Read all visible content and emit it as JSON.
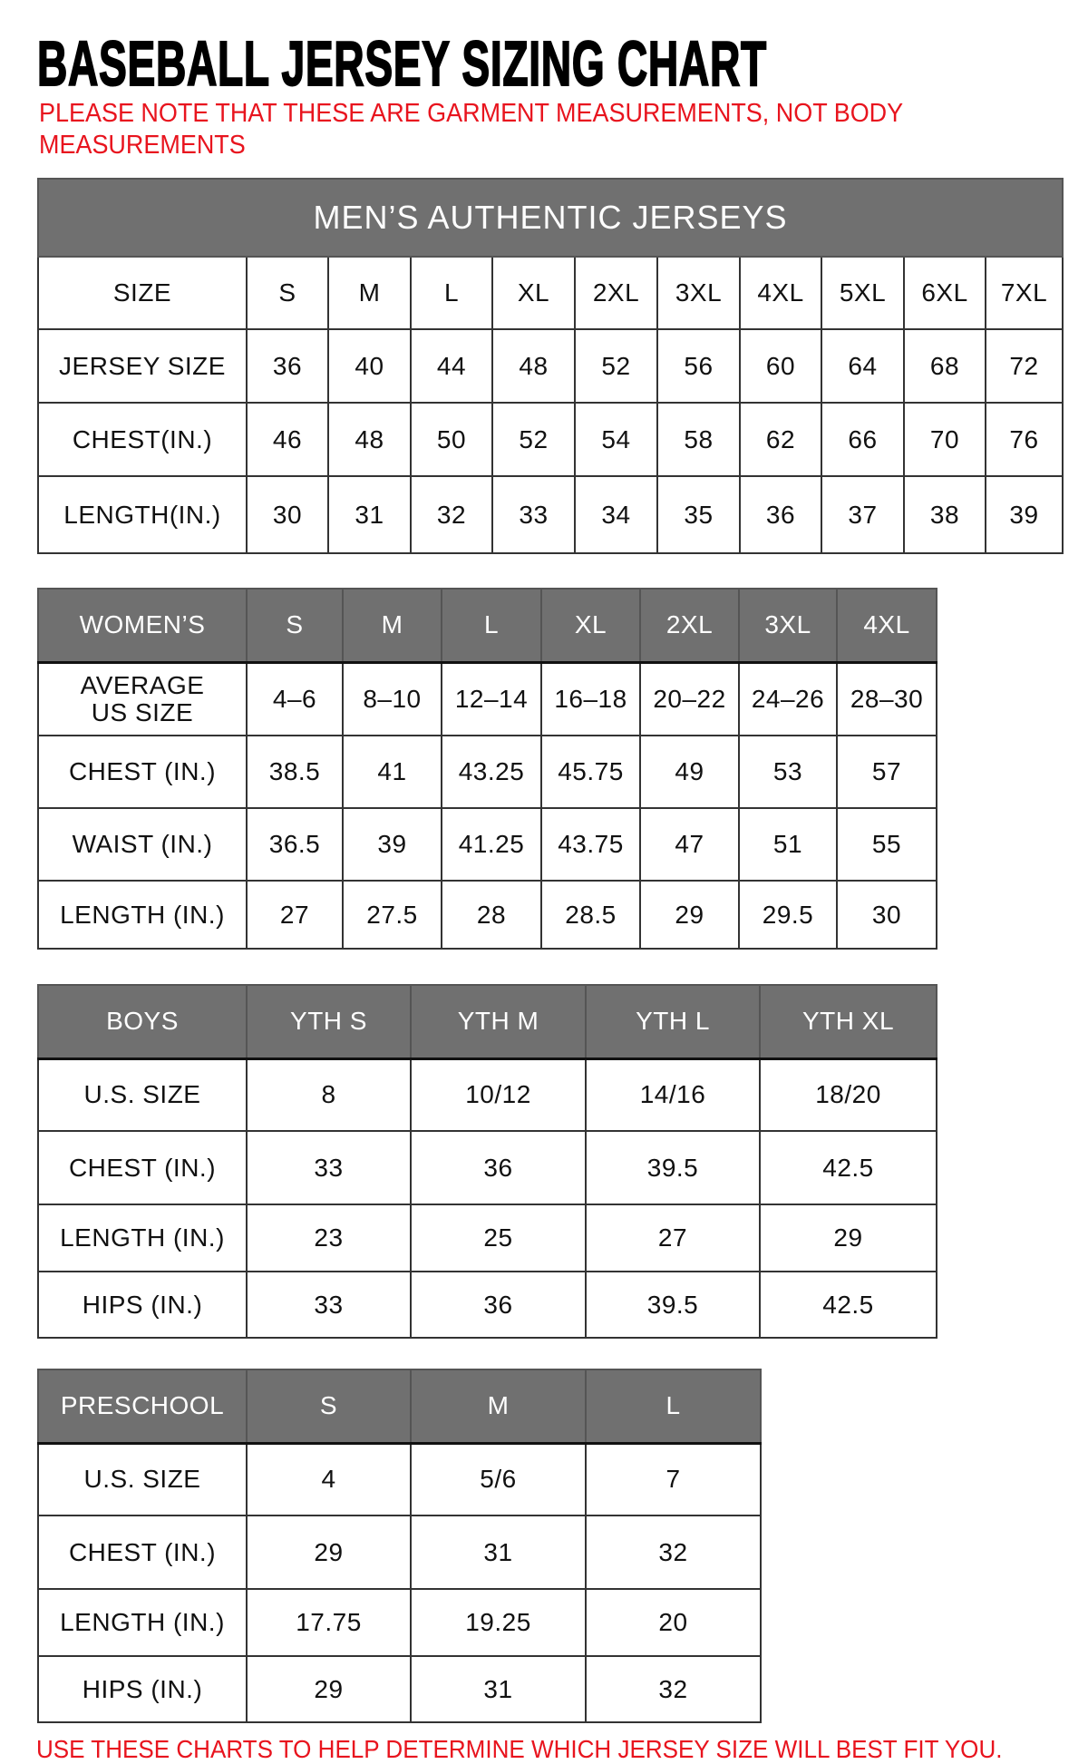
{
  "title": "BASEBALL JERSEY SIZING CHART",
  "note": "PLEASE NOTE THAT THESE ARE GARMENT MEASUREMENTS, NOT BODY MEASUREMENTS",
  "footer": "USE THESE CHARTS TO HELP DETERMINE WHICH JERSEY SIZE WILL BEST FIT YOU.",
  "colors": {
    "header_bg": "#707070",
    "header_text": "#ffffff",
    "note_text": "#e8141e",
    "border": "#333333"
  },
  "tables": [
    {
      "id": "men",
      "banner": "MEN’S AUTHENTIC JERSEYS",
      "header_is_gray": false,
      "header": [
        "SIZE",
        "S",
        "M",
        "L",
        "XL",
        "2XL",
        "3XL",
        "4XL",
        "5XL",
        "6XL",
        "7XL"
      ],
      "rows": [
        [
          "JERSEY SIZE",
          "36",
          "40",
          "44",
          "48",
          "52",
          "56",
          "60",
          "64",
          "68",
          "72"
        ],
        [
          "CHEST(IN.)",
          "46",
          "48",
          "50",
          "52",
          "54",
          "58",
          "62",
          "66",
          "70",
          "76"
        ],
        [
          "LENGTH(IN.)",
          "30",
          "31",
          "32",
          "33",
          "34",
          "35",
          "36",
          "37",
          "38",
          "39"
        ]
      ]
    },
    {
      "id": "women",
      "header_is_gray": true,
      "header": [
        "WOMEN’S",
        "S",
        "M",
        "L",
        "XL",
        "2XL",
        "3XL",
        "4XL"
      ],
      "rows": [
        [
          "AVERAGE\nUS SIZE",
          "4–6",
          "8–10",
          "12–14",
          "16–18",
          "20–22",
          "24–26",
          "28–30"
        ],
        [
          "CHEST (IN.)",
          "38.5",
          "41",
          "43.25",
          "45.75",
          "49",
          "53",
          "57"
        ],
        [
          "WAIST (IN.)",
          "36.5",
          "39",
          "41.25",
          "43.75",
          "47",
          "51",
          "55"
        ],
        [
          "LENGTH (IN.)",
          "27",
          "27.5",
          "28",
          "28.5",
          "29",
          "29.5",
          "30"
        ]
      ]
    },
    {
      "id": "boys",
      "header_is_gray": true,
      "header": [
        "BOYS",
        "YTH S",
        "YTH M",
        "YTH L",
        "YTH XL"
      ],
      "rows": [
        [
          "U.S. SIZE",
          "8",
          "10/12",
          "14/16",
          "18/20"
        ],
        [
          "CHEST (IN.)",
          "33",
          "36",
          "39.5",
          "42.5"
        ],
        [
          "LENGTH (IN.)",
          "23",
          "25",
          "27",
          "29"
        ],
        [
          "HIPS (IN.)",
          "33",
          "36",
          "39.5",
          "42.5"
        ]
      ]
    },
    {
      "id": "pre",
      "header_is_gray": true,
      "header": [
        "PRESCHOOL",
        "S",
        "M",
        "L"
      ],
      "rows": [
        [
          "U.S. SIZE",
          "4",
          "5/6",
          "7"
        ],
        [
          "CHEST (IN.)",
          "29",
          "31",
          "32"
        ],
        [
          "LENGTH (IN.)",
          "17.75",
          "19.25",
          "20"
        ],
        [
          "HIPS (IN.)",
          "29",
          "31",
          "32"
        ]
      ]
    }
  ]
}
